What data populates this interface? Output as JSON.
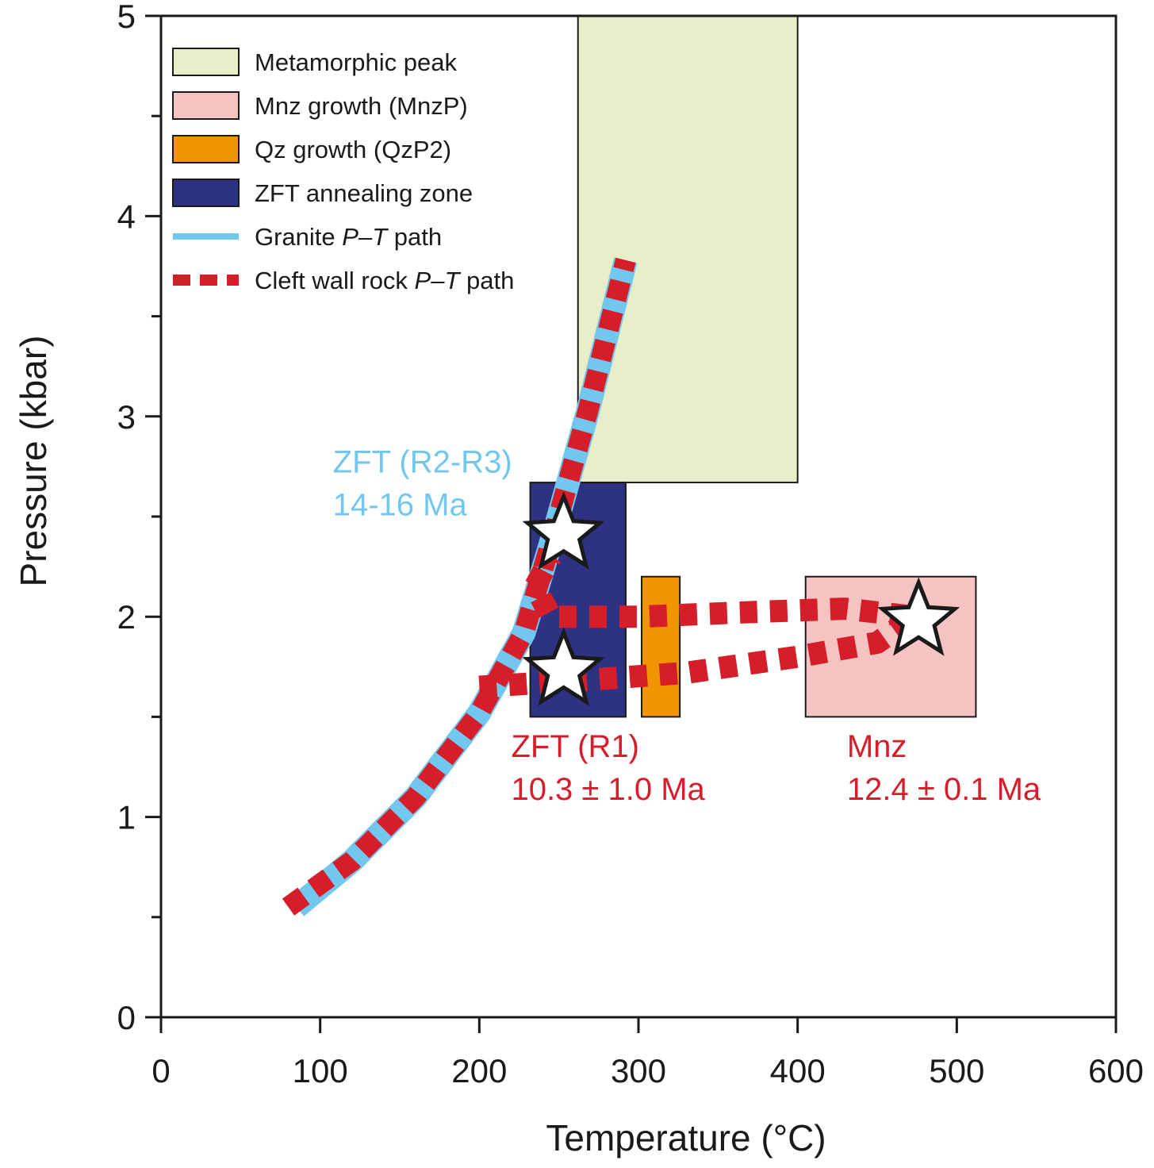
{
  "chart_data": {
    "type": "scatter",
    "title": "",
    "xlabel": "Temperature (°C)",
    "ylabel": "Pressure (kbar)",
    "xlim": [
      0,
      600
    ],
    "ylim": [
      0,
      5
    ],
    "x_ticks": [
      0,
      100,
      200,
      300,
      400,
      500,
      600
    ],
    "x_tick_labels": [
      "0",
      "100",
      "200",
      "300",
      "400",
      "500",
      "600"
    ],
    "y_ticks": [
      0,
      1,
      2,
      3,
      4,
      5
    ],
    "y_tick_labels": [
      "0",
      "1",
      "2",
      "3",
      "4",
      "5"
    ],
    "y_minor_ticks": [
      0.5,
      1.5,
      2.5,
      3.5,
      4.5
    ],
    "grid": false,
    "regions": [
      {
        "name": "Metamorphic peak",
        "color": "#e8efc8",
        "t_min": 262,
        "t_max": 400,
        "p_min": 2.67,
        "p_max": 5.05
      },
      {
        "name": "ZFT annealing zone",
        "color": "#2e3283",
        "t_min": 232,
        "t_max": 292,
        "p_min": 1.5,
        "p_max": 2.67
      },
      {
        "name": "Qz growth (QzP2)",
        "color": "#f09400",
        "t_min": 302,
        "t_max": 326,
        "p_min": 1.5,
        "p_max": 2.2
      },
      {
        "name": "Mnz growth (MnzP)",
        "color": "#f4c3c2",
        "t_min": 405,
        "t_max": 512,
        "p_min": 1.5,
        "p_max": 2.2
      }
    ],
    "series": [
      {
        "name": "Granite P–T path",
        "color": "#72c7ee",
        "points": [
          [
            85,
            0.55
          ],
          [
            120,
            0.78
          ],
          [
            160,
            1.1
          ],
          [
            200,
            1.52
          ],
          [
            228,
            1.92
          ],
          [
            248,
            2.45
          ],
          [
            268,
            3.02
          ],
          [
            292,
            3.78
          ]
        ]
      },
      {
        "name": "Cleft wall rock P–T path",
        "color": "#d51e29",
        "points": [
          [
            80,
            0.55
          ],
          [
            120,
            0.78
          ],
          [
            160,
            1.1
          ],
          [
            200,
            1.52
          ],
          [
            228,
            1.92
          ],
          [
            248,
            2.45
          ],
          [
            268,
            3.02
          ],
          [
            292,
            3.78
          ]
        ]
      },
      {
        "name": "Cleft wall rock P–T path (retrograde loop)",
        "color": "#d51e29",
        "points": [
          [
            200,
            1.65
          ],
          [
            260,
            1.68
          ],
          [
            330,
            1.72
          ],
          [
            400,
            1.8
          ],
          [
            450,
            1.87
          ],
          [
            473,
            2.0
          ],
          [
            430,
            2.04
          ],
          [
            360,
            2.02
          ],
          [
            300,
            2.0
          ],
          [
            245,
            2.0
          ],
          [
            235,
            2.15
          ],
          [
            245,
            2.3
          ]
        ]
      }
    ],
    "markers": [
      {
        "label": "star",
        "t": 253,
        "p": 2.41
      },
      {
        "label": "star",
        "t": 253,
        "p": 1.73
      },
      {
        "label": "star",
        "t": 476,
        "p": 1.98
      }
    ],
    "legend": {
      "position": "top-left",
      "entries": [
        {
          "label": "Metamorphic peak",
          "color": "#e8efc8",
          "kind": "box"
        },
        {
          "label": "Mnz  growth (MnzP)",
          "color": "#f4c3c2",
          "kind": "box"
        },
        {
          "label": "Qz  growth (QzP2)",
          "color": "#f09400",
          "kind": "box"
        },
        {
          "label": "ZFT annealing zone",
          "color": "#2e3283",
          "kind": "box"
        },
        {
          "label": "Granite P–T path",
          "label_pre": "Granite ",
          "label_italic": "P–T",
          "label_post": " path",
          "color": "#72c7ee",
          "kind": "line"
        },
        {
          "label": "Cleft wall rock P–T path",
          "label_pre": "Cleft wall rock ",
          "label_italic": "P–T",
          "label_post": " path",
          "color": "#d51e29",
          "kind": "dashed"
        }
      ]
    },
    "annotations": [
      {
        "lines": [
          "ZFT (R2-R3)",
          "14-16 Ma"
        ],
        "color": "#72c7ee",
        "t": 108,
        "p": 2.72
      },
      {
        "lines": [
          "ZFT (R1)",
          "10.3 ± 1.0 Ma"
        ],
        "color": "#d51e29",
        "t": 220,
        "p": 1.3
      },
      {
        "lines": [
          "Mnz",
          "12.4 ± 0.1 Ma"
        ],
        "color": "#d51e29",
        "t": 431,
        "p": 1.3
      }
    ]
  }
}
